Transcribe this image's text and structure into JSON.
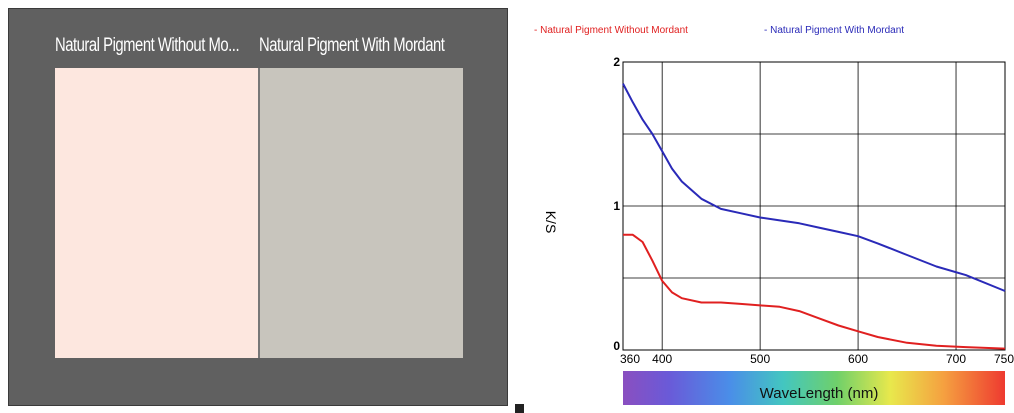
{
  "swatches": [
    {
      "label": "Natural Pigment Without Mo...",
      "color": "#fde7df"
    },
    {
      "label": "Natural Pigment With Mordant",
      "color": "#c8c5bd"
    }
  ],
  "panel_bg": "#606060",
  "chart_data": {
    "type": "line",
    "title": "",
    "xlabel": "WaveLength (nm)",
    "ylabel": "K/S",
    "xlim": [
      360,
      750
    ],
    "ylim": [
      0,
      2
    ],
    "xticks": [
      "360",
      "400",
      "500",
      "600",
      "700",
      "750"
    ],
    "xtick_values": [
      360,
      400,
      500,
      600,
      700,
      750
    ],
    "yticks": [
      "0",
      "1",
      "2"
    ],
    "ytick_values": [
      0,
      1,
      2
    ],
    "grid": true,
    "legend_position": "top",
    "series": [
      {
        "name": "Natural Pigment Without Mordant",
        "legend_label": "- Natural Pigment Without Mordant",
        "color": "#e02020",
        "x": [
          360,
          370,
          380,
          390,
          400,
          410,
          420,
          440,
          460,
          480,
          500,
          520,
          540,
          560,
          580,
          600,
          620,
          650,
          680,
          710,
          750
        ],
        "y": [
          0.8,
          0.8,
          0.75,
          0.62,
          0.48,
          0.4,
          0.36,
          0.33,
          0.33,
          0.32,
          0.31,
          0.3,
          0.27,
          0.22,
          0.17,
          0.13,
          0.09,
          0.05,
          0.03,
          0.02,
          0.01
        ]
      },
      {
        "name": "Natural Pigment With Mordant",
        "legend_label": "- Natural Pigment With Mordant",
        "color": "#2a2ab8",
        "x": [
          360,
          370,
          380,
          390,
          400,
          410,
          420,
          440,
          460,
          480,
          500,
          520,
          540,
          560,
          580,
          600,
          620,
          650,
          680,
          710,
          750
        ],
        "y": [
          1.85,
          1.72,
          1.6,
          1.5,
          1.38,
          1.26,
          1.17,
          1.05,
          0.98,
          0.95,
          0.92,
          0.9,
          0.88,
          0.85,
          0.82,
          0.79,
          0.74,
          0.66,
          0.58,
          0.52,
          0.41
        ]
      }
    ]
  }
}
